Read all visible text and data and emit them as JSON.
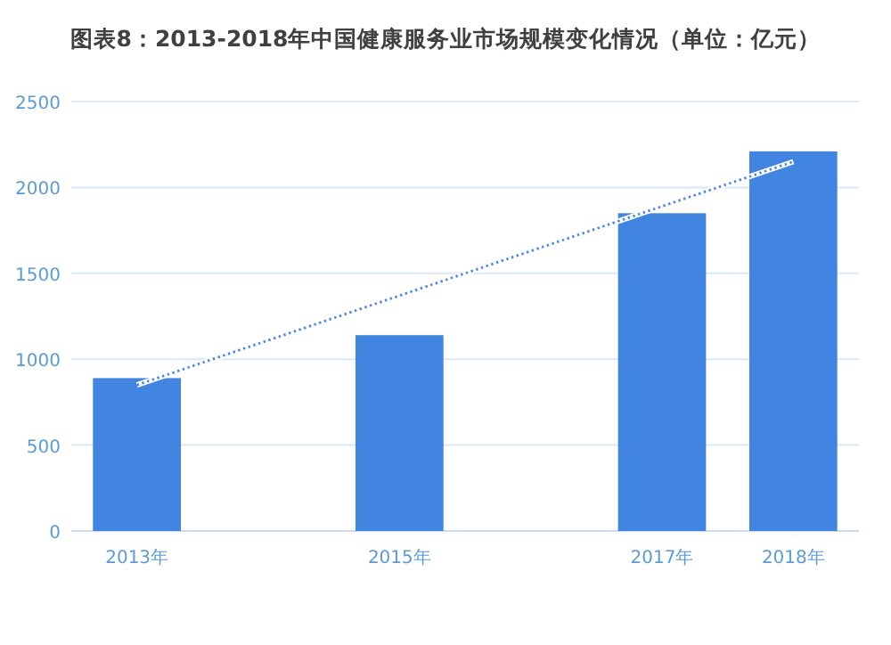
{
  "chart_data": {
    "type": "bar",
    "title": "图表8：2013-2018年中国健康服务业市场规模变化情况（单位：亿元）",
    "categories": [
      "2013年",
      null,
      "2015年",
      null,
      "2017年",
      "2018年"
    ],
    "series": [
      {
        "color": "#4285e0",
        "values": [
          890,
          null,
          1140,
          null,
          1850,
          2210
        ]
      },
      {
        "type": "line",
        "color": "#4a86e8",
        "line_style": "dotted",
        "values": [
          850,
          null,
          null,
          null,
          null,
          2150
        ]
      }
    ],
    "ylim": [
      0,
      2500
    ],
    "yticks": [
      0,
      500,
      1000,
      1500,
      2000,
      2500
    ],
    "grid": "y"
  }
}
